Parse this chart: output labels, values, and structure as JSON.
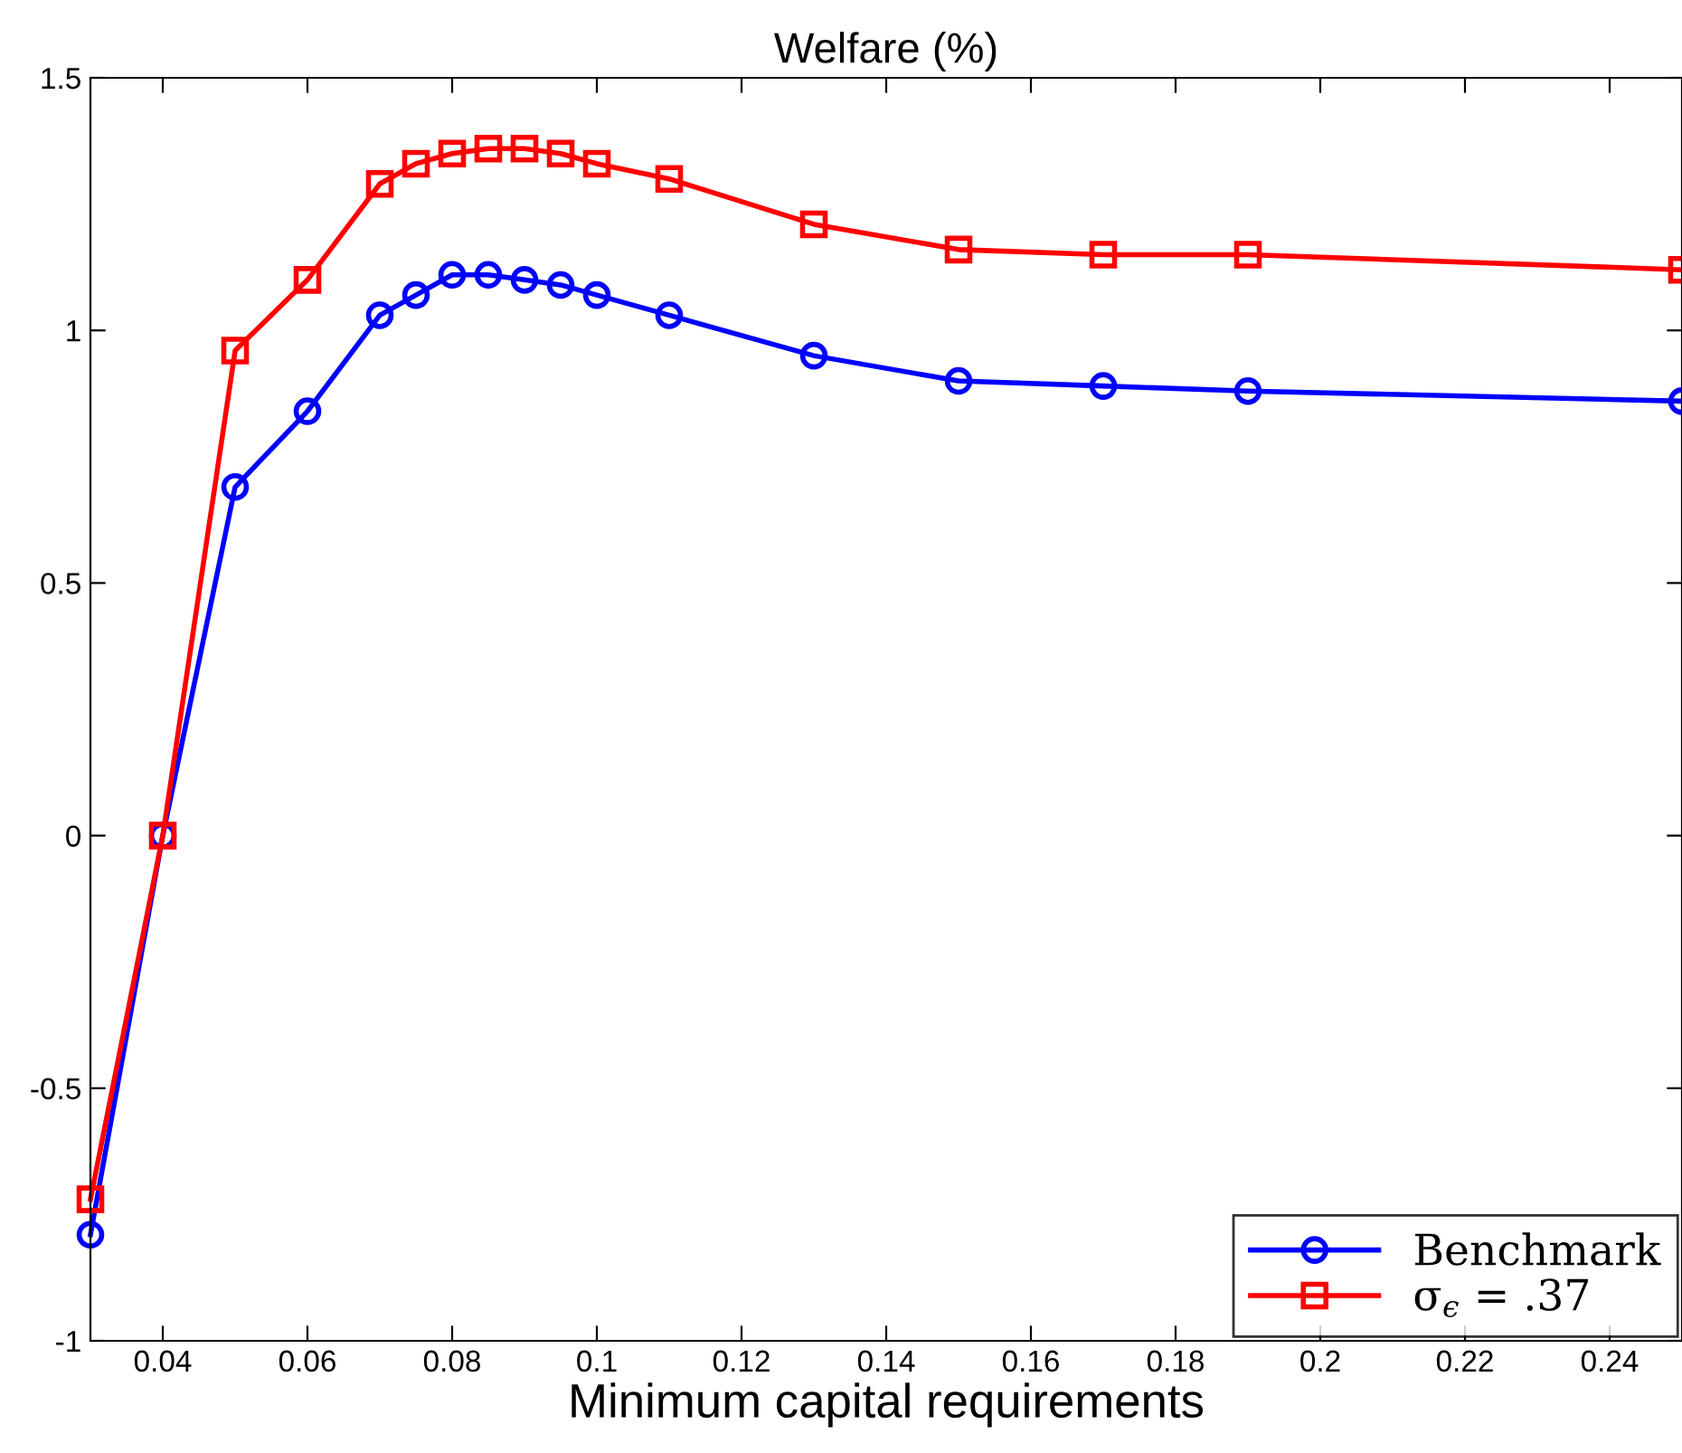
{
  "chart_data": {
    "type": "line",
    "title": "Welfare (%)",
    "xlabel": "Minimum capital requirements",
    "x": [
      0.03,
      0.04,
      0.05,
      0.06,
      0.07,
      0.075,
      0.08,
      0.085,
      0.09,
      0.095,
      0.1,
      0.11,
      0.13,
      0.15,
      0.17,
      0.19,
      0.25
    ],
    "series": [
      {
        "name": "Benchmark",
        "color": "#0000ff",
        "marker": "circle",
        "values": [
          -0.79,
          0,
          0.69,
          0.84,
          1.03,
          1.07,
          1.11,
          1.11,
          1.1,
          1.09,
          1.07,
          1.03,
          0.95,
          0.9,
          0.89,
          0.88,
          0.86
        ]
      },
      {
        "name": "σ$_{ϵ}$ = .37",
        "color": "#ff0000",
        "marker": "square",
        "values": [
          -0.72,
          0,
          0.96,
          1.1,
          1.29,
          1.33,
          1.35,
          1.36,
          1.36,
          1.35,
          1.33,
          1.3,
          1.21,
          1.16,
          1.15,
          1.15,
          1.12
        ]
      }
    ],
    "xlim": [
      0.03,
      0.25
    ],
    "xticks": [
      0.04,
      0.06,
      0.08,
      0.1,
      0.12,
      0.14,
      0.16,
      0.18,
      0.2,
      0.22,
      0.24
    ],
    "ylim": [
      -1,
      1.5
    ],
    "yticks": [
      -1,
      -0.5,
      0,
      0.5,
      1,
      1.5
    ],
    "grid": false,
    "legend": "bottom right",
    "line_style": "solid"
  }
}
